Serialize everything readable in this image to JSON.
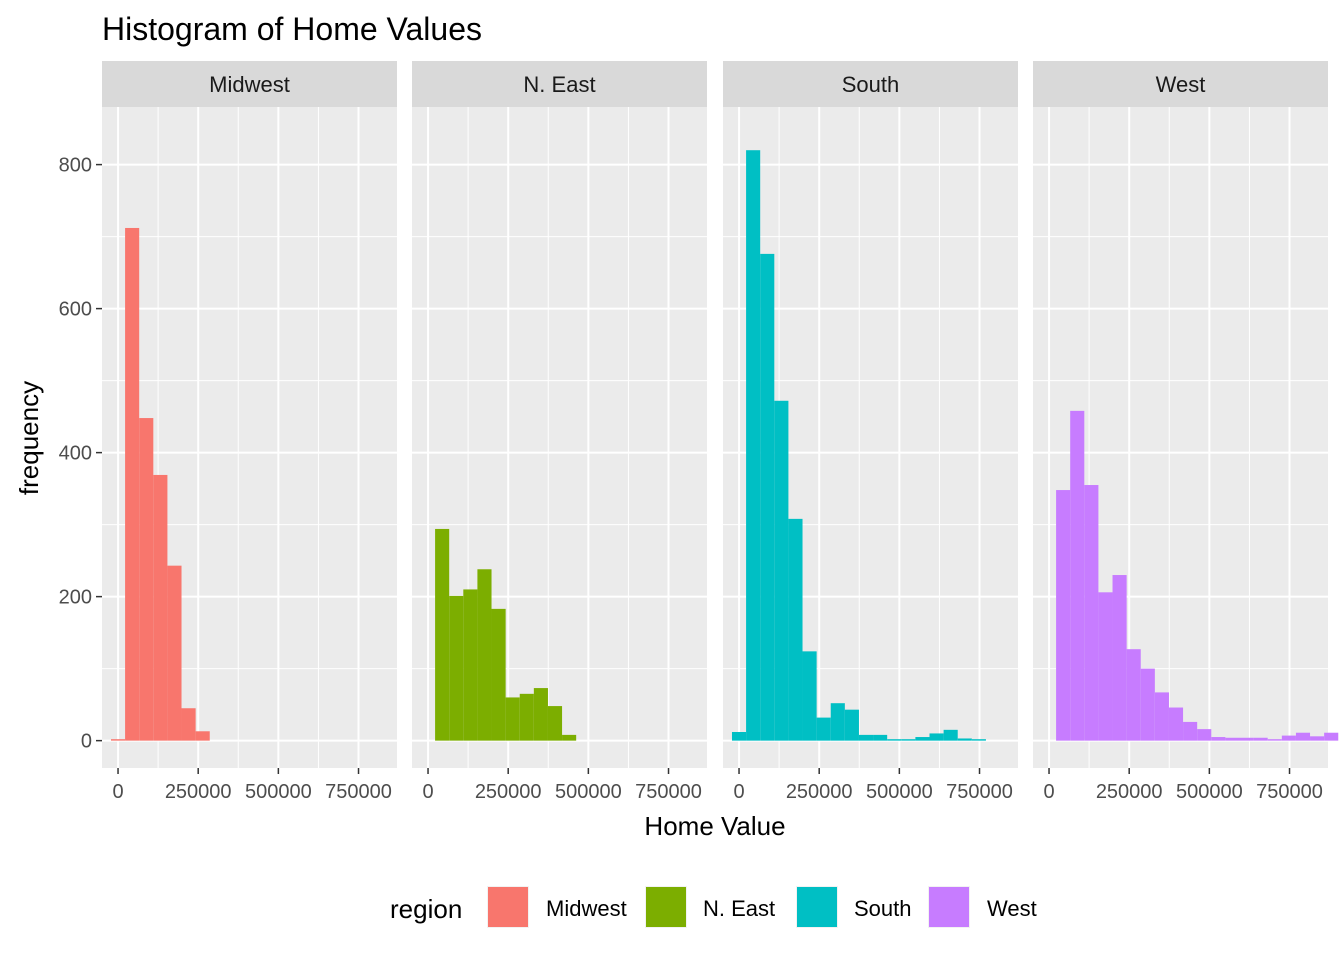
{
  "chart_data": {
    "type": "bar",
    "subtype": "faceted-histogram",
    "title": "Histogram of Home Values",
    "xlabel": "Home Value",
    "ylabel": "frequency",
    "xlim": [
      -50000,
      870000
    ],
    "ylim": [
      -38,
      880
    ],
    "x_ticks": [
      0,
      250000,
      500000,
      750000
    ],
    "x_tick_labels": [
      "0",
      "250000",
      "500000",
      "750000"
    ],
    "y_ticks": [
      0,
      200,
      400,
      600,
      800
    ],
    "y_tick_labels": [
      "0",
      "200",
      "400",
      "600",
      "800"
    ],
    "grid": true,
    "bin_width": 44000,
    "legend": {
      "title": "region",
      "position": "bottom",
      "items": [
        "Midwest",
        "N. East",
        "South",
        "West"
      ]
    },
    "facets": [
      {
        "name": "Midwest",
        "color": "#F8766D",
        "x_start": -22000,
        "values": [
          2,
          712,
          448,
          369,
          243,
          45,
          13
        ]
      },
      {
        "name": "N. East",
        "color": "#7CAE00",
        "x_start": 22000,
        "values": [
          294,
          201,
          210,
          238,
          183,
          60,
          65,
          73,
          48,
          8
        ]
      },
      {
        "name": "South",
        "color": "#00BFC4",
        "x_start": -22000,
        "values": [
          12,
          820,
          676,
          472,
          308,
          124,
          32,
          52,
          43,
          8,
          8,
          2,
          2,
          5,
          10,
          15,
          3,
          2
        ]
      },
      {
        "name": "West",
        "color": "#C77CFF",
        "x_start": 22000,
        "values": [
          348,
          458,
          355,
          206,
          230,
          127,
          100,
          67,
          46,
          26,
          16,
          5,
          4,
          4,
          4,
          2,
          7,
          11,
          6,
          11
        ]
      }
    ]
  }
}
